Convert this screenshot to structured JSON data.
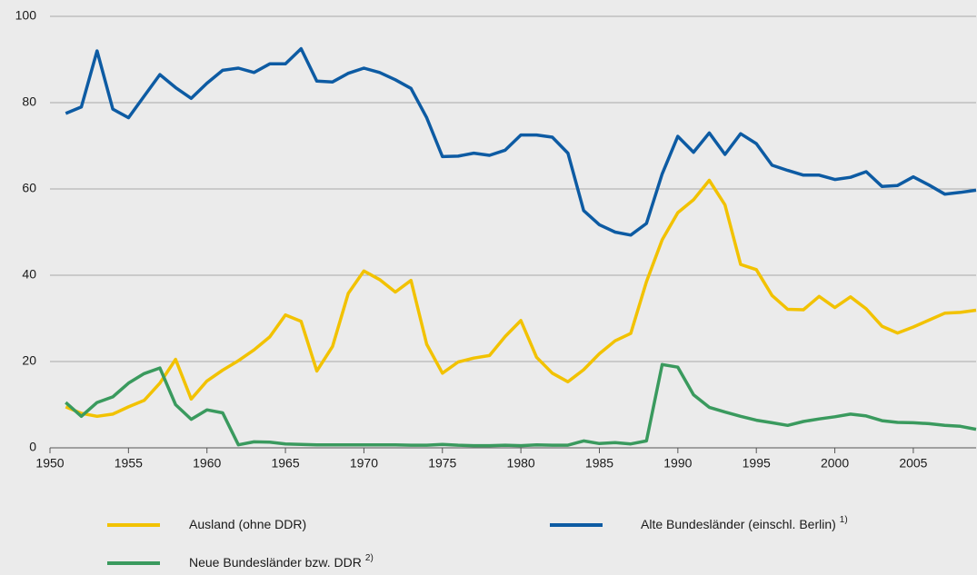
{
  "chart_data": {
    "type": "line",
    "x": [
      1951,
      1952,
      1953,
      1954,
      1955,
      1956,
      1957,
      1958,
      1959,
      1960,
      1961,
      1962,
      1963,
      1964,
      1965,
      1966,
      1967,
      1968,
      1969,
      1970,
      1971,
      1972,
      1973,
      1974,
      1975,
      1976,
      1977,
      1978,
      1979,
      1980,
      1981,
      1982,
      1983,
      1984,
      1985,
      1986,
      1987,
      1988,
      1989,
      1990,
      1991,
      1992,
      1993,
      1994,
      1995,
      1996,
      1997,
      1998,
      1999,
      2000,
      2001,
      2002,
      2003,
      2004,
      2005,
      2006,
      2007,
      2008,
      2009
    ],
    "series": [
      {
        "name": "Ausland (ohne DDR)",
        "color": "#f2c200",
        "values": [
          9.5,
          8,
          7.3,
          7.8,
          9.5,
          11,
          15,
          20.5,
          11.3,
          15.5,
          18,
          20.2,
          22.7,
          25.7,
          30.8,
          29.3,
          17.8,
          23.5,
          35.8,
          41,
          39,
          36.1,
          38.8,
          24,
          17.3,
          19.9,
          20.8,
          21.4,
          25.8,
          29.5,
          21,
          17.3,
          15.3,
          18.1,
          21.8,
          24.8,
          26.5,
          38.5,
          48.2,
          54.5,
          57.5,
          62,
          56.3,
          42.5,
          41.3,
          35.3,
          32.1,
          32,
          35.1,
          32.5,
          35,
          32.2,
          28.2,
          26.6,
          28,
          29.6,
          31.2,
          31.4,
          31.9
        ]
      },
      {
        "name": "Alte Bundesländer (einschl. Berlin)",
        "footnote": "1)",
        "color": "#0d5ba3",
        "values": [
          77.5,
          79,
          92,
          78.5,
          76.5,
          81.5,
          86.5,
          83.5,
          81,
          84.5,
          87.5,
          88,
          87,
          89,
          89,
          92.5,
          85,
          84.8,
          86.8,
          88,
          87,
          85.3,
          83.3,
          76.5,
          67.5,
          67.6,
          68.3,
          67.8,
          69,
          72.5,
          72.5,
          72,
          68.3,
          55,
          51.7,
          50,
          49.3,
          52,
          63.5,
          72.2,
          68.5,
          73,
          68,
          72.8,
          70.5,
          65.5,
          64.3,
          63.2,
          63.2,
          62.2,
          62.7,
          64,
          60.6,
          60.8,
          62.8,
          60.9,
          58.8,
          59.2,
          59.7
        ]
      },
      {
        "name": "Neue Bundesländer bzw. DDR",
        "footnote": "2)",
        "color": "#3a9a5e",
        "values": [
          10.5,
          7.3,
          10.5,
          11.8,
          15,
          17.2,
          18.5,
          10,
          6.6,
          8.8,
          8.1,
          0.7,
          1.4,
          1.3,
          0.9,
          0.8,
          0.7,
          0.7,
          0.7,
          0.7,
          0.7,
          0.7,
          0.6,
          0.6,
          0.8,
          0.6,
          0.5,
          0.5,
          0.6,
          0.5,
          0.7,
          0.6,
          0.6,
          1.6,
          1,
          1.2,
          0.9,
          1.6,
          19.3,
          18.7,
          12.3,
          9.4,
          8.3,
          7.3,
          6.4,
          5.8,
          5.2,
          6.1,
          6.7,
          7.2,
          7.8,
          7.4,
          6.3,
          5.9,
          5.8,
          5.6,
          5.2,
          5,
          4.3
        ]
      }
    ],
    "xlim": [
      1950,
      2009
    ],
    "xticks": [
      1950,
      1955,
      1960,
      1965,
      1970,
      1975,
      1980,
      1985,
      1990,
      1995,
      2000,
      2005
    ],
    "ylim": [
      0,
      100
    ],
    "yticks": [
      0,
      20,
      40,
      60,
      80,
      100
    ],
    "grid": true
  }
}
